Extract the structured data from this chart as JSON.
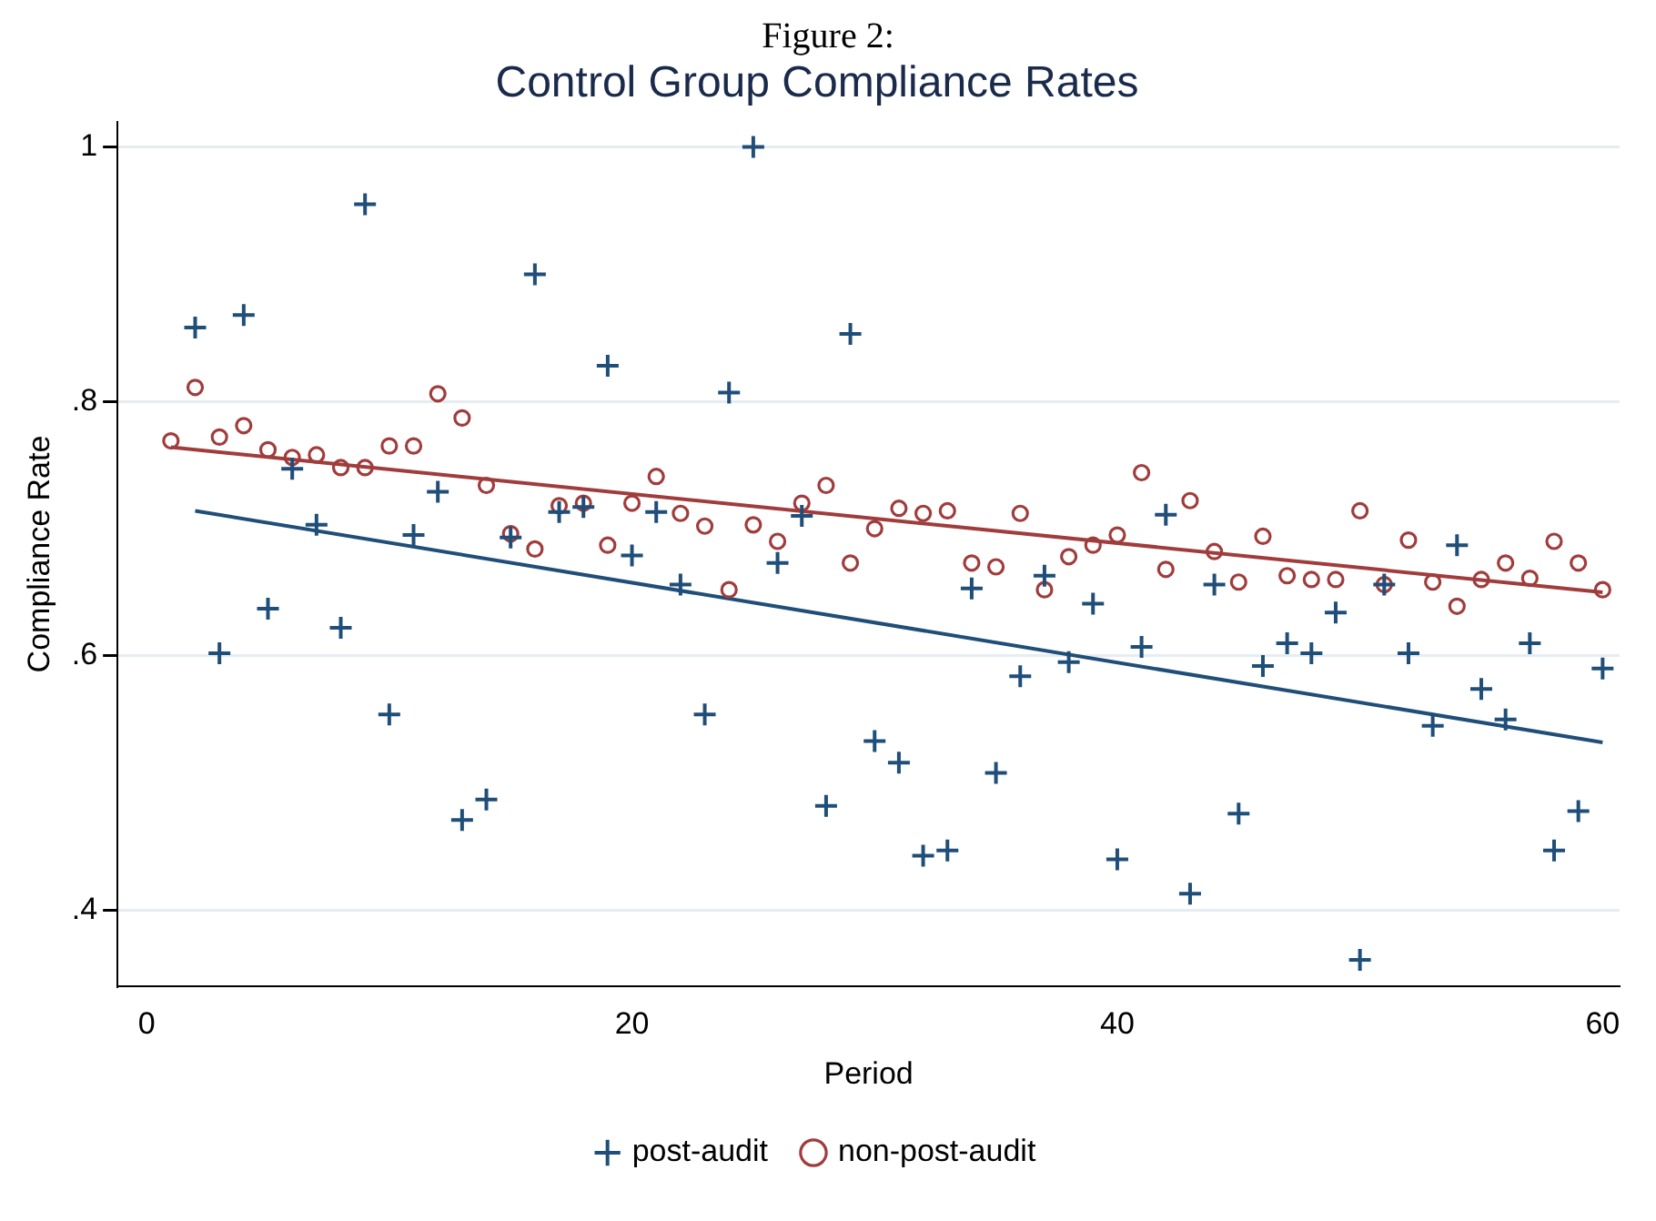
{
  "chart_data": {
    "type": "scatter",
    "title": "Control Group Compliance Rates",
    "annotations": [
      "Figure 2:"
    ],
    "xlabel": "Period",
    "ylabel": "Compliance Rate",
    "xlim": [
      -1.2,
      60.7
    ],
    "xticks": [
      0,
      20,
      40,
      60
    ],
    "ylim": [
      0.34,
      1.02
    ],
    "yticks": [
      {
        "value": 0.4,
        "label": ".4"
      },
      {
        "value": 0.6,
        "label": ".6"
      },
      {
        "value": 0.8,
        "label": ".8"
      },
      1
    ],
    "grid": "y",
    "legend": "bottom",
    "series": [
      {
        "name": "post-audit",
        "type": "scatter",
        "marker": "cross",
        "color": "#1f4e79",
        "x": [
          2,
          3,
          4,
          5,
          6,
          7,
          8,
          9,
          10,
          11,
          12,
          13,
          14,
          15,
          16,
          17,
          18,
          19,
          20,
          21,
          22,
          23,
          24,
          25,
          26,
          27,
          28,
          29,
          30,
          31,
          32,
          33,
          34,
          35,
          36,
          37,
          38,
          39,
          40,
          41,
          42,
          43,
          44,
          45,
          46,
          47,
          48,
          49,
          50,
          51,
          52,
          53,
          54,
          55,
          56,
          57,
          58,
          59,
          60
        ],
        "values": [
          0.858,
          0.602,
          0.868,
          0.637,
          0.747,
          0.703,
          0.622,
          0.955,
          0.554,
          0.695,
          0.729,
          0.471,
          0.487,
          0.693,
          0.9,
          0.713,
          0.717,
          0.828,
          0.679,
          0.713,
          0.656,
          0.554,
          0.807,
          1.0,
          0.673,
          0.71,
          0.482,
          0.853,
          0.533,
          0.516,
          0.443,
          0.447,
          0.653,
          0.508,
          0.584,
          0.663,
          0.595,
          0.641,
          0.44,
          0.607,
          0.711,
          0.413,
          0.656,
          0.476,
          0.592,
          0.61,
          0.602,
          0.634,
          0.361,
          0.656,
          0.602,
          0.545,
          0.687,
          0.574,
          0.55,
          0.61,
          0.447,
          0.478,
          0.59
        ]
      },
      {
        "name": "non-post-audit",
        "type": "scatter",
        "marker": "circle",
        "color": "#a03c3c",
        "x": [
          1,
          2,
          3,
          4,
          5,
          6,
          7,
          8,
          9,
          10,
          11,
          12,
          13,
          14,
          15,
          16,
          17,
          18,
          19,
          20,
          21,
          22,
          23,
          24,
          25,
          26,
          27,
          28,
          29,
          30,
          31,
          32,
          33,
          34,
          35,
          36,
          37,
          38,
          39,
          40,
          41,
          42,
          43,
          44,
          45,
          46,
          47,
          48,
          49,
          50,
          51,
          52,
          53,
          54,
          55,
          56,
          57,
          58,
          59,
          60
        ],
        "values": [
          0.769,
          0.811,
          0.772,
          0.781,
          0.762,
          0.756,
          0.758,
          0.748,
          0.748,
          0.765,
          0.765,
          0.806,
          0.787,
          0.734,
          0.696,
          0.684,
          0.718,
          0.72,
          0.687,
          0.72,
          0.741,
          0.712,
          0.702,
          0.652,
          0.703,
          0.69,
          0.72,
          0.734,
          0.673,
          0.7,
          0.716,
          0.712,
          0.714,
          0.673,
          0.67,
          0.712,
          0.652,
          0.678,
          0.687,
          0.695,
          0.744,
          0.668,
          0.722,
          0.682,
          0.658,
          0.694,
          0.663,
          0.66,
          0.66,
          0.714,
          0.656,
          0.691,
          0.658,
          0.639,
          0.66,
          0.673,
          0.661,
          0.69,
          0.673,
          0.652
        ]
      },
      {
        "type": "line",
        "marker": "none",
        "color": "#1f4e79",
        "x": [
          2,
          60
        ],
        "values": [
          0.714,
          0.532
        ]
      },
      {
        "type": "line",
        "marker": "none",
        "color": "#a03c3c",
        "x": [
          1,
          60
        ],
        "values": [
          0.764,
          0.65
        ]
      }
    ]
  }
}
